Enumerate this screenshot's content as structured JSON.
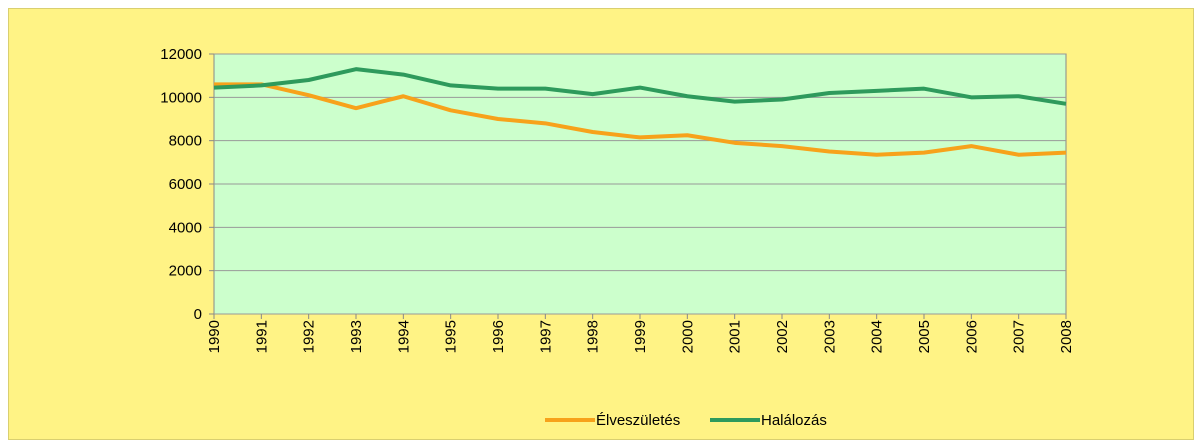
{
  "chart_data": {
    "type": "line",
    "categories": [
      "1990",
      "1991",
      "1992",
      "1993",
      "1994",
      "1995",
      "1996",
      "1997",
      "1998",
      "1999",
      "2000",
      "2001",
      "2002",
      "2003",
      "2004",
      "2005",
      "2006",
      "2007",
      "2008"
    ],
    "series": [
      {
        "name": "Élveszületés",
        "color": "#f7a21b",
        "values": [
          10600,
          10600,
          10100,
          9500,
          10050,
          9400,
          9000,
          8800,
          8400,
          8150,
          8250,
          7900,
          7750,
          7500,
          7350,
          7450,
          7750,
          7350,
          7450
        ]
      },
      {
        "name": "Halálozás",
        "color": "#2e9a5c",
        "values": [
          10450,
          10550,
          10800,
          11300,
          11050,
          10550,
          10400,
          10400,
          10150,
          10450,
          10050,
          9800,
          9900,
          10200,
          10300,
          10400,
          10000,
          10050,
          9700
        ]
      }
    ],
    "ylim": [
      0,
      12000
    ],
    "yticks": [
      0,
      2000,
      4000,
      6000,
      8000,
      10000,
      12000
    ],
    "grid": true,
    "legend": "bottom"
  }
}
